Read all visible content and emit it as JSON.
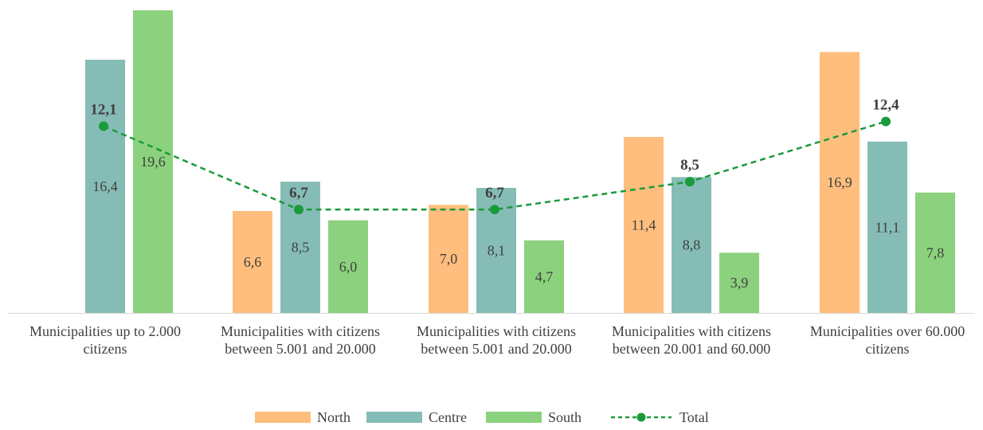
{
  "chart_data": {
    "type": "bar",
    "categories": [
      "Municipalities up to 2.000 citizens",
      "Municipalities with citizens between 5.001 and 20.000",
      "Municipalities with citizens between 5.001 and 20.000",
      "Municipalities with citizens between 20.001 and 60.000",
      "Municipalities over 60.000 citizens"
    ],
    "series": [
      {
        "name": "North",
        "type": "bar",
        "color": "#FFBE7D",
        "values": [
          null,
          6.6,
          7.0,
          11.4,
          16.9
        ],
        "labels": [
          "",
          "6,6",
          "7,0",
          "11,4",
          "16,9"
        ]
      },
      {
        "name": "Centre",
        "type": "bar",
        "color": "#86BCB6",
        "values": [
          16.4,
          8.5,
          8.1,
          8.8,
          11.1
        ],
        "labels": [
          "16,4",
          "8,5",
          "8,1",
          "8,8",
          "11,1"
        ]
      },
      {
        "name": "South",
        "type": "bar",
        "color": "#8CD17D",
        "values": [
          19.6,
          6.0,
          4.7,
          3.9,
          7.8
        ],
        "labels": [
          "19,6",
          "6,0",
          "4,7",
          "3,9",
          "7,8"
        ]
      },
      {
        "name": "Total",
        "type": "line",
        "color": "#1A9A3A",
        "style": "dashed-with-markers",
        "values": [
          12.1,
          6.7,
          6.7,
          8.5,
          12.4
        ],
        "labels": [
          "12,1",
          "6,7",
          "6,7",
          "8,5",
          "12,4"
        ]
      }
    ],
    "ylim": [
      0,
      20
    ],
    "grid": false,
    "legend_position": "bottom",
    "title": "",
    "xlabel": "",
    "ylabel": ""
  }
}
